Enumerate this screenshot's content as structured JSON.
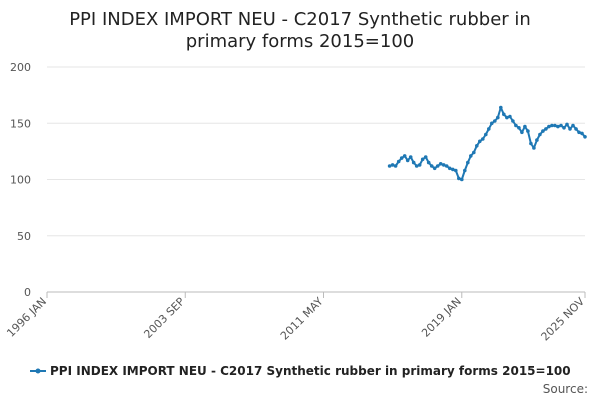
{
  "chart_data": {
    "type": "line",
    "title": "PPI INDEX IMPORT NEU - C2017 Synthetic rubber in primary forms 2015=100",
    "title_lines": [
      "PPI INDEX IMPORT NEU - C2017 Synthetic rubber in",
      "primary forms 2015=100"
    ],
    "xlabel": "",
    "ylabel": "",
    "ylim": [
      0,
      200
    ],
    "yticks": [
      0,
      50,
      100,
      150,
      200
    ],
    "xlim": [
      "1996-01",
      "2025-11"
    ],
    "xticks": [
      "1996 JAN",
      "2003 SEP",
      "2011 MAY",
      "2019 JAN",
      "2025 NOV"
    ],
    "grid": "horizontal",
    "legend_position": "bottom",
    "color": "#1f78b4",
    "series": [
      {
        "name": "PPI INDEX IMPORT NEU - C2017 Synthetic rubber in primary forms 2015=100",
        "x": [
          "2015-01",
          "2015-03",
          "2015-05",
          "2015-07",
          "2015-09",
          "2015-11",
          "2016-01",
          "2016-03",
          "2016-05",
          "2016-07",
          "2016-09",
          "2016-11",
          "2017-01",
          "2017-03",
          "2017-05",
          "2017-07",
          "2017-09",
          "2017-11",
          "2018-01",
          "2018-03",
          "2018-05",
          "2018-07",
          "2018-09",
          "2018-11",
          "2019-01",
          "2019-03",
          "2019-05",
          "2019-07",
          "2019-09",
          "2019-11",
          "2020-01",
          "2020-03",
          "2020-05",
          "2020-07",
          "2020-09",
          "2020-11",
          "2021-01",
          "2021-03",
          "2021-05",
          "2021-07",
          "2021-09",
          "2021-11",
          "2022-01",
          "2022-03",
          "2022-05",
          "2022-07",
          "2022-09",
          "2022-11",
          "2023-01",
          "2023-03",
          "2023-05",
          "2023-07",
          "2023-09",
          "2023-11",
          "2024-01",
          "2024-03",
          "2024-05",
          "2024-07",
          "2024-09",
          "2024-11",
          "2025-01",
          "2025-03",
          "2025-05",
          "2025-07",
          "2025-09",
          "2025-11"
        ],
        "values": [
          112,
          113,
          112,
          116,
          119,
          121,
          117,
          120,
          115,
          112,
          113,
          118,
          120,
          115,
          112,
          110,
          112,
          114,
          113,
          112,
          110,
          109,
          108,
          101,
          100,
          108,
          115,
          121,
          124,
          130,
          134,
          136,
          140,
          145,
          150,
          152,
          155,
          164,
          158,
          155,
          156,
          152,
          148,
          146,
          142,
          147,
          143,
          132,
          128,
          135,
          140,
          143,
          145,
          147,
          148,
          148,
          147,
          148,
          146,
          149,
          145,
          148,
          145,
          142,
          141,
          138
        ]
      }
    ],
    "source_label": "Source:"
  }
}
